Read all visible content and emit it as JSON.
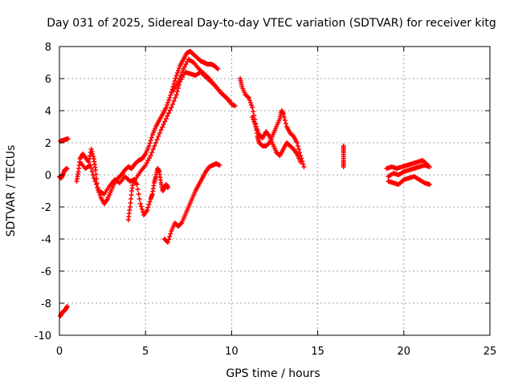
{
  "chart_data": {
    "type": "scatter",
    "title": "Day 031 of 2025, Sidereal Day-to-day VTEC variation (SDTVAR) for receiver kitg",
    "xlabel": "GPS time / hours",
    "ylabel": "SDTVAR / TECUs",
    "xlim": [
      0,
      25
    ],
    "ylim": [
      -10,
      8
    ],
    "xticks": [
      0,
      5,
      10,
      15,
      20,
      25
    ],
    "yticks": [
      -10,
      -8,
      -6,
      -4,
      -2,
      0,
      2,
      4,
      6,
      8
    ],
    "xtick_labels": [
      "0",
      "5",
      "10",
      "15",
      "20",
      "25"
    ],
    "ytick_labels": [
      "-10",
      "-8",
      "-6",
      "-4",
      "-2",
      "0",
      "2",
      "4",
      "6",
      "8"
    ],
    "grid": true,
    "marker": "+",
    "color": "#ff0000",
    "series": [
      {
        "name": "s1",
        "points": [
          [
            0.05,
            2.1
          ],
          [
            0.2,
            2.15
          ],
          [
            0.35,
            2.2
          ],
          [
            0.5,
            2.25
          ]
        ]
      },
      {
        "name": "s2",
        "points": [
          [
            0.0,
            -0.1
          ],
          [
            0.1,
            -0.2
          ],
          [
            0.2,
            0.0
          ],
          [
            0.3,
            0.3
          ],
          [
            0.45,
            0.4
          ]
        ]
      },
      {
        "name": "s3",
        "points": [
          [
            0.05,
            -8.8
          ],
          [
            0.15,
            -8.6
          ],
          [
            0.25,
            -8.5
          ],
          [
            0.35,
            -8.4
          ],
          [
            0.45,
            -8.2
          ]
        ]
      },
      {
        "name": "s4",
        "points": [
          [
            1.0,
            -0.4
          ],
          [
            1.1,
            0.2
          ],
          [
            1.2,
            1.0
          ],
          [
            1.35,
            1.3
          ],
          [
            1.5,
            1.1
          ],
          [
            1.7,
            0.8
          ],
          [
            1.85,
            1.6
          ],
          [
            2.0,
            1.0
          ],
          [
            2.1,
            0.3
          ],
          [
            2.2,
            -0.8
          ],
          [
            2.4,
            -1.4
          ],
          [
            2.6,
            -1.8
          ],
          [
            2.8,
            -1.5
          ],
          [
            3.0,
            -1.0
          ],
          [
            3.2,
            -0.5
          ],
          [
            3.4,
            -0.2
          ],
          [
            3.6,
            0.0
          ],
          [
            3.8,
            0.3
          ],
          [
            4.0,
            0.5
          ],
          [
            4.2,
            0.4
          ],
          [
            4.4,
            0.7
          ],
          [
            4.6,
            0.9
          ],
          [
            4.8,
            1.0
          ],
          [
            5.0,
            1.3
          ],
          [
            5.2,
            1.8
          ],
          [
            5.4,
            2.5
          ],
          [
            5.6,
            3.0
          ],
          [
            5.8,
            3.4
          ],
          [
            6.0,
            3.8
          ],
          [
            6.2,
            4.2
          ],
          [
            6.4,
            4.8
          ],
          [
            6.6,
            5.5
          ],
          [
            6.8,
            6.2
          ],
          [
            7.0,
            6.8
          ],
          [
            7.2,
            7.2
          ],
          [
            7.4,
            7.6
          ],
          [
            7.6,
            7.7
          ],
          [
            7.8,
            7.5
          ],
          [
            8.0,
            7.3
          ],
          [
            8.2,
            7.1
          ],
          [
            8.4,
            7.0
          ],
          [
            8.6,
            6.9
          ],
          [
            8.8,
            6.9
          ],
          [
            9.0,
            6.8
          ],
          [
            9.2,
            6.6
          ]
        ]
      },
      {
        "name": "s5",
        "points": [
          [
            1.2,
            0.8
          ],
          [
            1.5,
            0.4
          ],
          [
            1.8,
            0.6
          ],
          [
            2.0,
            -0.2
          ],
          [
            2.3,
            -1.0
          ],
          [
            2.6,
            -1.2
          ],
          [
            2.9,
            -0.7
          ],
          [
            3.2,
            -0.3
          ],
          [
            3.5,
            -0.5
          ],
          [
            3.8,
            -0.1
          ],
          [
            4.1,
            -0.4
          ],
          [
            4.4,
            -0.3
          ],
          [
            4.7,
            0.2
          ],
          [
            5.0,
            0.6
          ],
          [
            5.3,
            1.2
          ],
          [
            5.6,
            2.0
          ],
          [
            5.9,
            2.8
          ],
          [
            6.2,
            3.5
          ],
          [
            6.5,
            4.2
          ],
          [
            6.8,
            5.0
          ],
          [
            7.0,
            5.8
          ],
          [
            7.3,
            6.4
          ],
          [
            7.6,
            6.3
          ],
          [
            7.9,
            6.2
          ],
          [
            8.2,
            6.4
          ],
          [
            8.5,
            6.1
          ],
          [
            8.8,
            5.8
          ],
          [
            9.1,
            5.5
          ],
          [
            9.4,
            5.1
          ],
          [
            9.7,
            4.8
          ],
          [
            10.0,
            4.4
          ],
          [
            10.2,
            4.3
          ]
        ]
      },
      {
        "name": "s6",
        "points": [
          [
            6.6,
            5.2
          ],
          [
            6.9,
            5.8
          ],
          [
            7.2,
            6.6
          ],
          [
            7.5,
            7.2
          ],
          [
            7.8,
            7.0
          ],
          [
            8.1,
            6.6
          ],
          [
            8.4,
            6.3
          ],
          [
            8.7,
            6.0
          ],
          [
            9.0,
            5.6
          ],
          [
            9.3,
            5.2
          ],
          [
            9.6,
            4.9
          ],
          [
            9.9,
            4.6
          ]
        ]
      },
      {
        "name": "s7",
        "points": [
          [
            4.0,
            -2.8
          ],
          [
            4.1,
            -2.0
          ],
          [
            4.2,
            -1.0
          ],
          [
            4.3,
            -0.3
          ],
          [
            4.5,
            -0.6
          ],
          [
            4.7,
            -1.8
          ],
          [
            4.9,
            -2.5
          ],
          [
            5.1,
            -2.2
          ],
          [
            5.3,
            -1.5
          ],
          [
            5.4,
            -1.2
          ],
          [
            5.5,
            -0.5
          ],
          [
            5.6,
            -0.1
          ],
          [
            5.7,
            0.4
          ],
          [
            5.8,
            0.2
          ],
          [
            5.9,
            -0.5
          ],
          [
            6.0,
            -1.0
          ],
          [
            6.1,
            -0.8
          ],
          [
            6.2,
            -0.6
          ],
          [
            6.3,
            -0.8
          ]
        ]
      },
      {
        "name": "s8",
        "points": [
          [
            6.1,
            -4.0
          ],
          [
            6.3,
            -4.2
          ],
          [
            6.5,
            -3.5
          ],
          [
            6.7,
            -3.0
          ],
          [
            6.9,
            -3.2
          ],
          [
            7.1,
            -3.0
          ],
          [
            7.3,
            -2.5
          ],
          [
            7.5,
            -2.0
          ],
          [
            7.7,
            -1.5
          ],
          [
            7.9,
            -1.0
          ],
          [
            8.1,
            -0.6
          ],
          [
            8.3,
            -0.2
          ],
          [
            8.5,
            0.2
          ],
          [
            8.7,
            0.5
          ],
          [
            8.9,
            0.6
          ],
          [
            9.1,
            0.7
          ],
          [
            9.3,
            0.6
          ]
        ]
      },
      {
        "name": "s9",
        "points": [
          [
            10.5,
            6.0
          ],
          [
            10.6,
            5.5
          ],
          [
            10.8,
            5.0
          ],
          [
            11.0,
            4.8
          ],
          [
            11.2,
            4.2
          ],
          [
            11.4,
            3.2
          ],
          [
            11.5,
            2.4
          ],
          [
            11.6,
            2.0
          ],
          [
            11.8,
            1.8
          ],
          [
            12.0,
            1.8
          ],
          [
            12.2,
            2.0
          ],
          [
            12.4,
            2.5
          ],
          [
            12.6,
            3.0
          ],
          [
            12.8,
            3.5
          ],
          [
            12.9,
            4.0
          ],
          [
            13.0,
            3.8
          ],
          [
            13.2,
            3.0
          ],
          [
            13.4,
            2.6
          ],
          [
            13.6,
            2.4
          ],
          [
            13.8,
            2.0
          ],
          [
            14.0,
            1.2
          ],
          [
            14.2,
            0.5
          ]
        ]
      },
      {
        "name": "s10",
        "points": [
          [
            11.2,
            3.6
          ],
          [
            11.4,
            3.0
          ],
          [
            11.6,
            2.5
          ],
          [
            11.8,
            2.3
          ],
          [
            12.0,
            2.7
          ],
          [
            12.2,
            2.4
          ],
          [
            12.4,
            1.9
          ],
          [
            12.6,
            1.4
          ],
          [
            12.8,
            1.2
          ],
          [
            13.0,
            1.6
          ],
          [
            13.2,
            2.0
          ],
          [
            13.4,
            1.8
          ],
          [
            13.6,
            1.6
          ],
          [
            13.8,
            1.3
          ],
          [
            14.0,
            0.8
          ]
        ]
      },
      {
        "name": "s11",
        "points": [
          [
            16.5,
            1.8
          ],
          [
            16.5,
            1.4
          ],
          [
            16.5,
            0.9
          ],
          [
            16.5,
            0.5
          ]
        ]
      },
      {
        "name": "s12",
        "points": [
          [
            19.0,
            0.4
          ],
          [
            19.3,
            0.5
          ],
          [
            19.6,
            0.4
          ],
          [
            19.9,
            0.5
          ],
          [
            20.2,
            0.6
          ],
          [
            20.5,
            0.7
          ],
          [
            20.8,
            0.8
          ],
          [
            21.1,
            0.9
          ],
          [
            21.4,
            0.6
          ]
        ]
      },
      {
        "name": "s13",
        "points": [
          [
            19.1,
            -0.1
          ],
          [
            19.4,
            0.1
          ],
          [
            19.7,
            0.0
          ],
          [
            20.0,
            0.2
          ],
          [
            20.3,
            0.3
          ],
          [
            20.6,
            0.4
          ],
          [
            20.9,
            0.5
          ],
          [
            21.2,
            0.6
          ],
          [
            21.5,
            0.5
          ]
        ]
      },
      {
        "name": "s14",
        "points": [
          [
            19.1,
            -0.4
          ],
          [
            19.4,
            -0.5
          ],
          [
            19.7,
            -0.6
          ],
          [
            20.0,
            -0.3
          ],
          [
            20.3,
            -0.2
          ],
          [
            20.6,
            -0.1
          ],
          [
            20.9,
            -0.3
          ],
          [
            21.2,
            -0.5
          ],
          [
            21.5,
            -0.6
          ]
        ]
      }
    ]
  }
}
